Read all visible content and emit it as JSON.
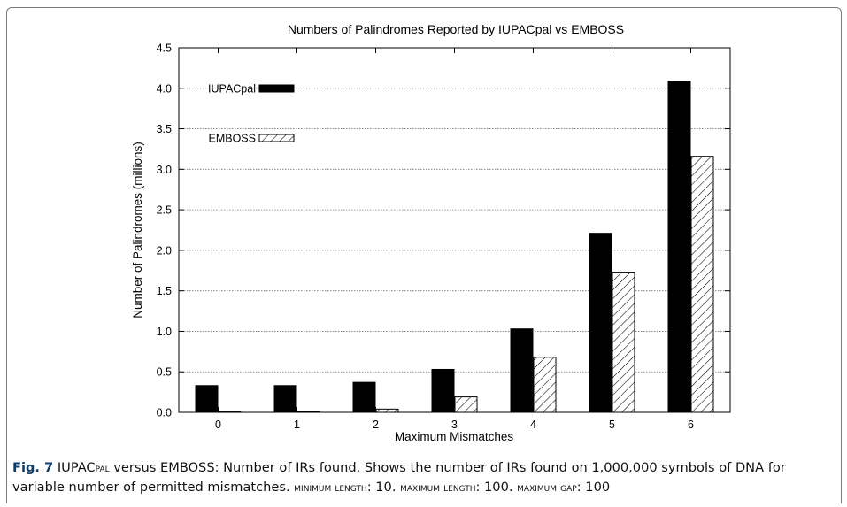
{
  "chart_data": {
    "type": "bar",
    "title": "Numbers of Palindromes Reported by IUPACpal vs EMBOSS",
    "xlabel": "Maximum Mismatches",
    "ylabel": "Number of Palindromes (millions)",
    "categories": [
      "0",
      "1",
      "2",
      "3",
      "4",
      "5",
      "6"
    ],
    "ylim": [
      0,
      4.5
    ],
    "yticks": [
      "0.0",
      "0.5",
      "1.0",
      "1.5",
      "2.0",
      "2.5",
      "3.0",
      "3.5",
      "4.0",
      "4.5"
    ],
    "grid": true,
    "legend_position": "top-left",
    "series": [
      {
        "name": "IUPACpal",
        "values": [
          0.33,
          0.33,
          0.37,
          0.53,
          1.03,
          2.21,
          4.09
        ],
        "fill": "solid-black"
      },
      {
        "name": "EMBOSS",
        "values": [
          0.005,
          0.01,
          0.04,
          0.19,
          0.68,
          1.73,
          3.16
        ],
        "fill": "hatched"
      }
    ]
  },
  "caption": {
    "label": "Fig. 7",
    "text_1": " IUPAC",
    "smallcaps_1": "pal",
    "text_2": " versus EMBOSS: Number of IRs found. Shows the number of IRs found on 1,000,000 symbols of DNA for variable number of permitted mismatches. ",
    "param_1_name": "minimum length",
    "param_1_value": ": 10. ",
    "param_2_name": "maximum length",
    "param_2_value": ": 100. ",
    "param_3_name": "maximum gap",
    "param_3_value": ": 100"
  }
}
